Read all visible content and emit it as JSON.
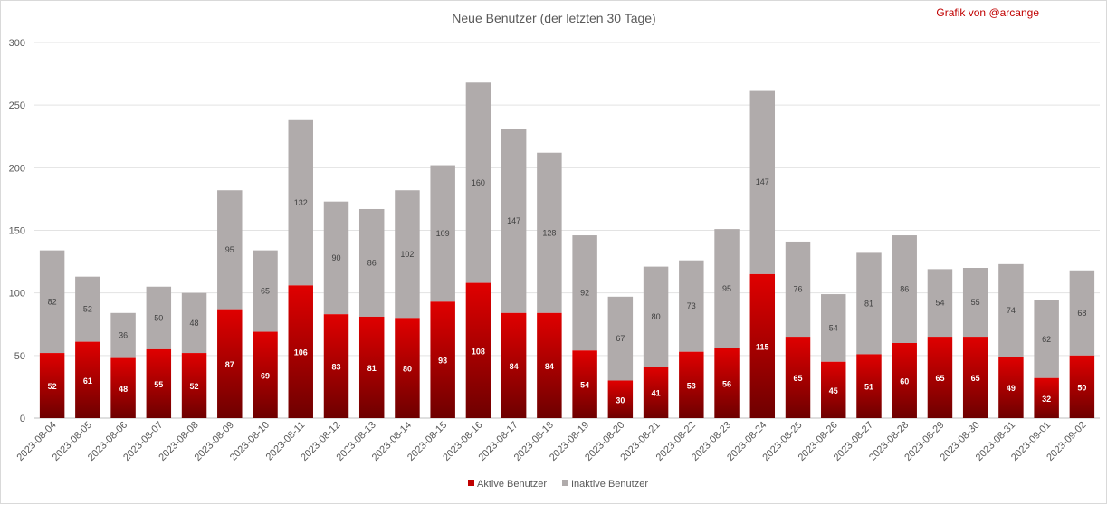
{
  "credit": "Grafik von @arcange",
  "chart_data": {
    "type": "bar",
    "stacked": true,
    "title": "Neue Benutzer (der letzten 30 Tage)",
    "xlabel": "",
    "ylabel": "",
    "ylim": [
      0,
      300
    ],
    "yticks": [
      0,
      50,
      100,
      150,
      200,
      250,
      300
    ],
    "grid": true,
    "legend_position": "bottom",
    "categories": [
      "2023-08-04",
      "2023-08-05",
      "2023-08-06",
      "2023-08-07",
      "2023-08-08",
      "2023-08-09",
      "2023-08-10",
      "2023-08-11",
      "2023-08-12",
      "2023-08-13",
      "2023-08-14",
      "2023-08-15",
      "2023-08-16",
      "2023-08-17",
      "2023-08-18",
      "2023-08-19",
      "2023-08-20",
      "2023-08-21",
      "2023-08-22",
      "2023-08-23",
      "2023-08-24",
      "2023-08-25",
      "2023-08-26",
      "2023-08-27",
      "2023-08-28",
      "2023-08-29",
      "2023-08-30",
      "2023-08-31",
      "2023-09-01",
      "2023-09-02"
    ],
    "series": [
      {
        "name": "Aktive Benutzer",
        "color": "#c00000",
        "values": [
          52,
          61,
          48,
          55,
          52,
          87,
          69,
          106,
          83,
          81,
          80,
          93,
          108,
          84,
          84,
          54,
          30,
          41,
          53,
          56,
          115,
          65,
          45,
          51,
          60,
          65,
          65,
          49,
          32,
          50
        ]
      },
      {
        "name": "Inaktive Benutzer",
        "color": "#b0abab",
        "values": [
          82,
          52,
          36,
          50,
          48,
          95,
          65,
          132,
          90,
          86,
          102,
          109,
          160,
          147,
          128,
          92,
          67,
          80,
          73,
          95,
          147,
          76,
          54,
          81,
          86,
          54,
          55,
          74,
          62,
          68
        ]
      }
    ]
  }
}
